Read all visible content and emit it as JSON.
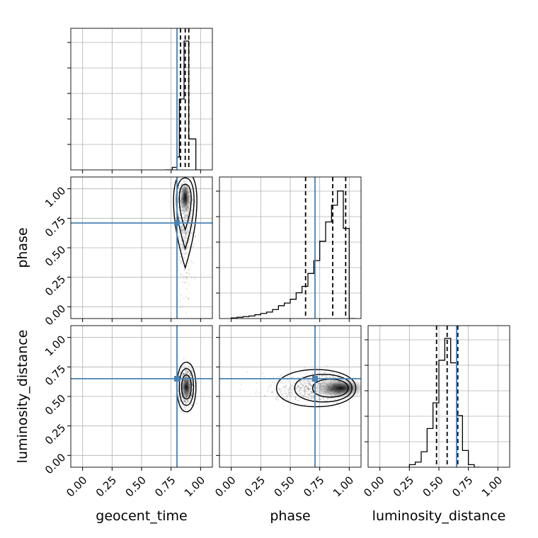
{
  "chart_data": {
    "type": "corner",
    "parameters": [
      "geocent_time",
      "phase",
      "luminosity_distance"
    ],
    "range": [
      -0.1,
      1.1
    ],
    "ticks": [
      0.0,
      0.25,
      0.5,
      0.75,
      1.0
    ],
    "tick_labels": [
      "0.00",
      "0.25",
      "0.50",
      "0.75",
      "1.00"
    ],
    "grid": true,
    "truths": [
      0.8,
      0.71,
      0.65
    ],
    "colors": {
      "truth": "#4682b4",
      "line": "#000000",
      "grid": "#b0b0b0"
    },
    "histograms": [
      {
        "parameter": "geocent_time",
        "bin_edges": [
          0.7,
          0.72,
          0.74,
          0.76,
          0.78,
          0.8,
          0.82,
          0.84,
          0.86,
          0.88,
          0.9,
          0.92,
          0.94,
          0.96,
          0.98,
          1.0
        ],
        "counts": [
          0,
          0,
          0,
          0.02,
          0.02,
          0.1,
          0.55,
          0.55,
          1.0,
          1.0,
          0.24,
          0.24,
          0.24,
          0,
          0
        ],
        "quantiles": [
          0.83,
          0.87,
          0.9
        ]
      },
      {
        "parameter": "phase",
        "bin_edges": [
          0.0,
          0.05,
          0.1,
          0.15,
          0.2,
          0.25,
          0.3,
          0.35,
          0.4,
          0.45,
          0.5,
          0.55,
          0.6,
          0.65,
          0.7,
          0.75,
          0.8,
          0.85,
          0.9,
          0.95,
          1.0,
          1.05
        ],
        "counts": [
          0.005,
          0.01,
          0.015,
          0.02,
          0.03,
          0.04,
          0.05,
          0.07,
          0.1,
          0.12,
          0.15,
          0.2,
          0.25,
          0.35,
          0.45,
          0.6,
          0.75,
          0.88,
          0.99,
          0.7,
          0.0
        ],
        "quantiles": [
          0.63,
          0.86,
          0.97
        ]
      },
      {
        "parameter": "luminosity_distance",
        "bin_edges": [
          0.25,
          0.3,
          0.35,
          0.4,
          0.45,
          0.5,
          0.55,
          0.6,
          0.65,
          0.7,
          0.75,
          0.8,
          0.85
        ],
        "counts": [
          0.02,
          0.04,
          0.12,
          0.3,
          0.5,
          0.83,
          1.0,
          0.81,
          0.4,
          0.13,
          0.02,
          0.0
        ],
        "quantiles": [
          0.48,
          0.57,
          0.66
        ]
      }
    ],
    "scatter_2d": [
      {
        "x": "geocent_time",
        "y": "phase",
        "peak": [
          0.87,
          0.93
        ]
      },
      {
        "x": "geocent_time",
        "y": "luminosity_distance",
        "peak": [
          0.88,
          0.58
        ]
      },
      {
        "x": "phase",
        "y": "luminosity_distance",
        "peak": [
          0.93,
          0.57
        ]
      }
    ]
  }
}
